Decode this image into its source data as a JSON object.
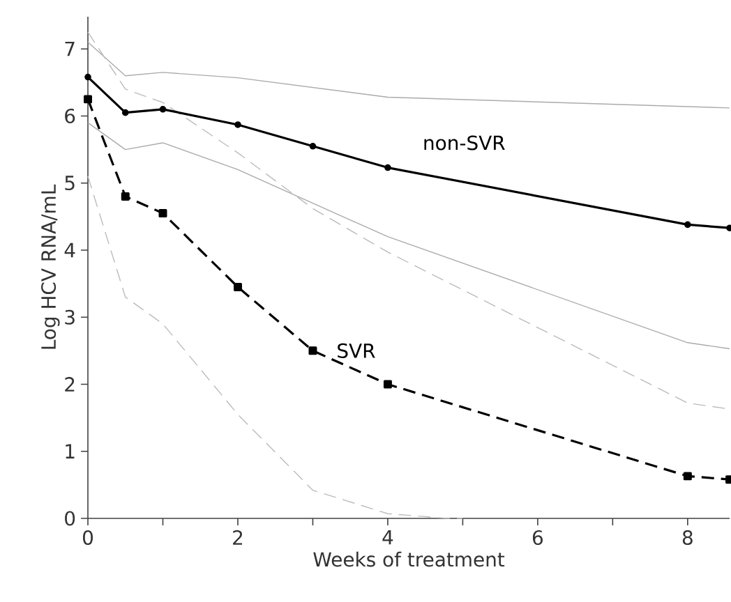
{
  "chart_data": {
    "type": "line",
    "xlabel": "Weeks of treatment",
    "ylabel": "Log HCV RNA/mL",
    "xlim": [
      0,
      8.56
    ],
    "ylim": [
      0,
      7.48
    ],
    "xticks": [
      0,
      {
        "value": 1,
        "label": null
      },
      2,
      {
        "value": 3,
        "label": null
      },
      4,
      {
        "value": 5,
        "label": null
      },
      6,
      {
        "value": 7,
        "label": null
      },
      8
    ],
    "yticks": [
      0,
      1,
      2,
      3,
      4,
      5,
      6,
      7
    ],
    "series": [
      {
        "color": "#aaaaaa",
        "line_style": "solid",
        "marker": "none",
        "x": [
          0,
          0.5,
          1,
          2,
          4,
          8.56
        ],
        "values": [
          7.1,
          6.6,
          6.65,
          6.57,
          6.28,
          6.12
        ]
      },
      {
        "color": "#aaaaaa",
        "line_style": "solid",
        "marker": "none",
        "x": [
          0,
          0.5,
          1,
          2,
          3,
          4,
          8,
          8.56
        ],
        "values": [
          5.9,
          5.5,
          5.6,
          5.2,
          4.7,
          4.2,
          2.62,
          2.53
        ]
      },
      {
        "color": "#bbbbbb",
        "line_style": "dashed",
        "marker": "none",
        "x": [
          0,
          0.5,
          1,
          2,
          3,
          4,
          8,
          8.56
        ],
        "values": [
          7.25,
          6.4,
          6.2,
          5.45,
          4.62,
          3.97,
          1.72,
          1.63
        ]
      },
      {
        "color": "#bbbbbb",
        "line_style": "dashed",
        "marker": "none",
        "x": [
          0,
          0.5,
          1,
          2,
          3,
          4,
          4.8,
          5
        ],
        "values": [
          5.1,
          3.3,
          2.9,
          1.55,
          0.42,
          0.07,
          0,
          0
        ]
      },
      {
        "name": "non-SVR",
        "color": "#000000",
        "line_style": "solid",
        "marker": "circle",
        "x": [
          0,
          0.5,
          1,
          2,
          3,
          4,
          8,
          8.56
        ],
        "values": [
          6.58,
          6.05,
          6.1,
          5.87,
          5.55,
          5.23,
          4.38,
          4.33
        ]
      },
      {
        "name": "SVR",
        "color": "#000000",
        "line_style": "dashed",
        "marker": "square",
        "x": [
          0,
          0.5,
          1,
          2,
          3,
          4,
          8,
          8.56
        ],
        "values": [
          6.25,
          4.8,
          4.55,
          3.45,
          2.5,
          2.0,
          0.63,
          0.58
        ]
      }
    ]
  }
}
